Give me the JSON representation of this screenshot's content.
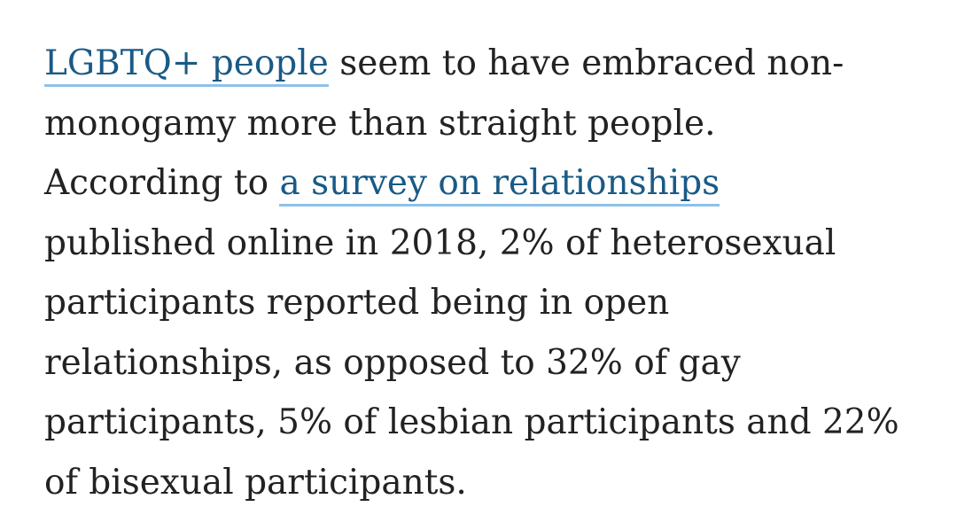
{
  "paragraph": {
    "link1": "LGBTQ+ people",
    "line1_rest": " seem to have embraced non-",
    "line2": "monogamy more than straight people.",
    "line3_pre": "According to ",
    "link2": "a survey on relationships",
    "line4": "published online in 2018, 2% of heterosexual",
    "line5": "participants reported being in open",
    "line6": "relationships, as opposed to 32% of gay",
    "line7": "participants, 5% of lesbian participants and 22%",
    "line8": "of bisexual participants."
  },
  "colors": {
    "text": "#222222",
    "link": "#1a5a86",
    "link_underline": "#8ec1e8"
  }
}
